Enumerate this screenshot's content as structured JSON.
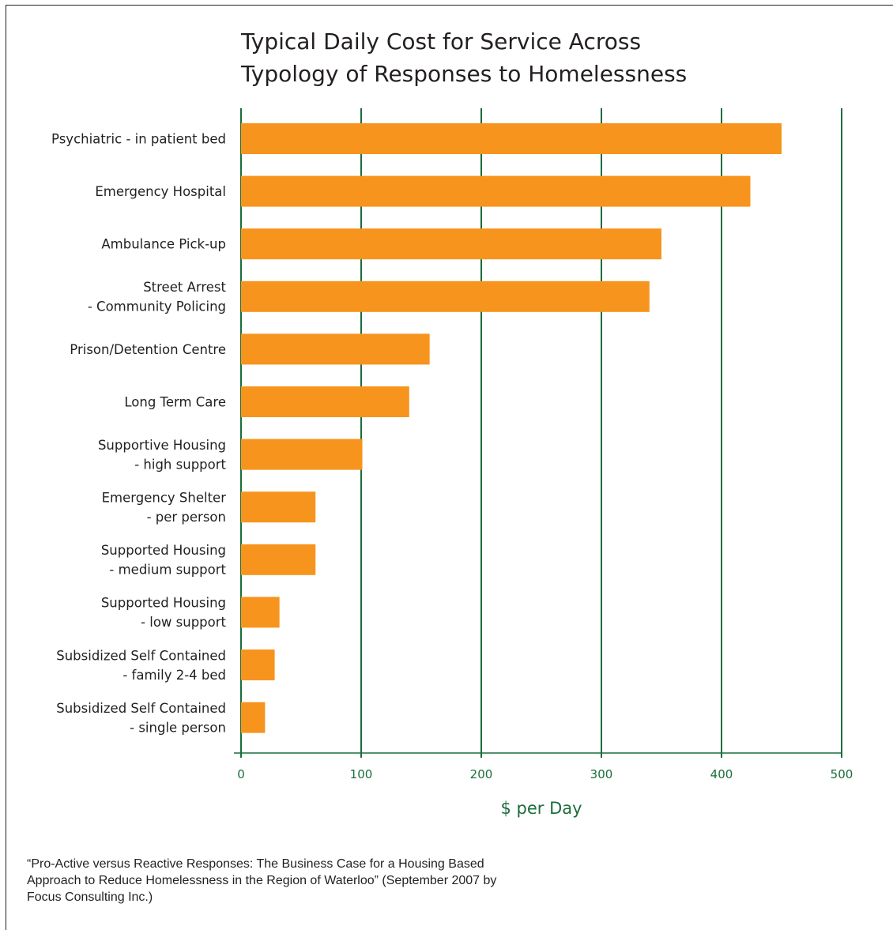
{
  "chart_data": {
    "type": "bar",
    "orientation": "horizontal",
    "title_lines": [
      "Typical Daily Cost for Service Across",
      "Typology of Responses to Homelessness"
    ],
    "xlabel": "$ per Day",
    "xlim": [
      0,
      500
    ],
    "xticks": [
      0,
      100,
      200,
      300,
      400,
      500
    ],
    "grid": "vertical",
    "categories": [
      [
        "Psychiatric - in patient bed"
      ],
      [
        "Emergency Hospital"
      ],
      [
        "Ambulance Pick-up"
      ],
      [
        "Street Arrest",
        "- Community Policing"
      ],
      [
        "Prison/Detention Centre"
      ],
      [
        "Long Term Care"
      ],
      [
        "Supportive Housing",
        "- high support"
      ],
      [
        "Emergency Shelter",
        "- per person"
      ],
      [
        "Supported Housing",
        "- medium support"
      ],
      [
        "Supported Housing",
        "- low support"
      ],
      [
        "Subsidized Self Contained",
        "- family 2-4 bed"
      ],
      [
        "Subsidized Self Contained",
        "- single person"
      ]
    ],
    "values": [
      450,
      424,
      350,
      340,
      157,
      140,
      101,
      62,
      62,
      32,
      28,
      20
    ],
    "colors": {
      "bar": "#f7941d",
      "grid": "#1a6e3a",
      "axis": "#1a6e3a"
    }
  },
  "source_note": "“Pro-Active versus Reactive Responses: The Business Case for a Housing Based  Approach to Reduce Homelessness in the Region of Waterloo” (September 2007 by Focus Consulting Inc.)"
}
